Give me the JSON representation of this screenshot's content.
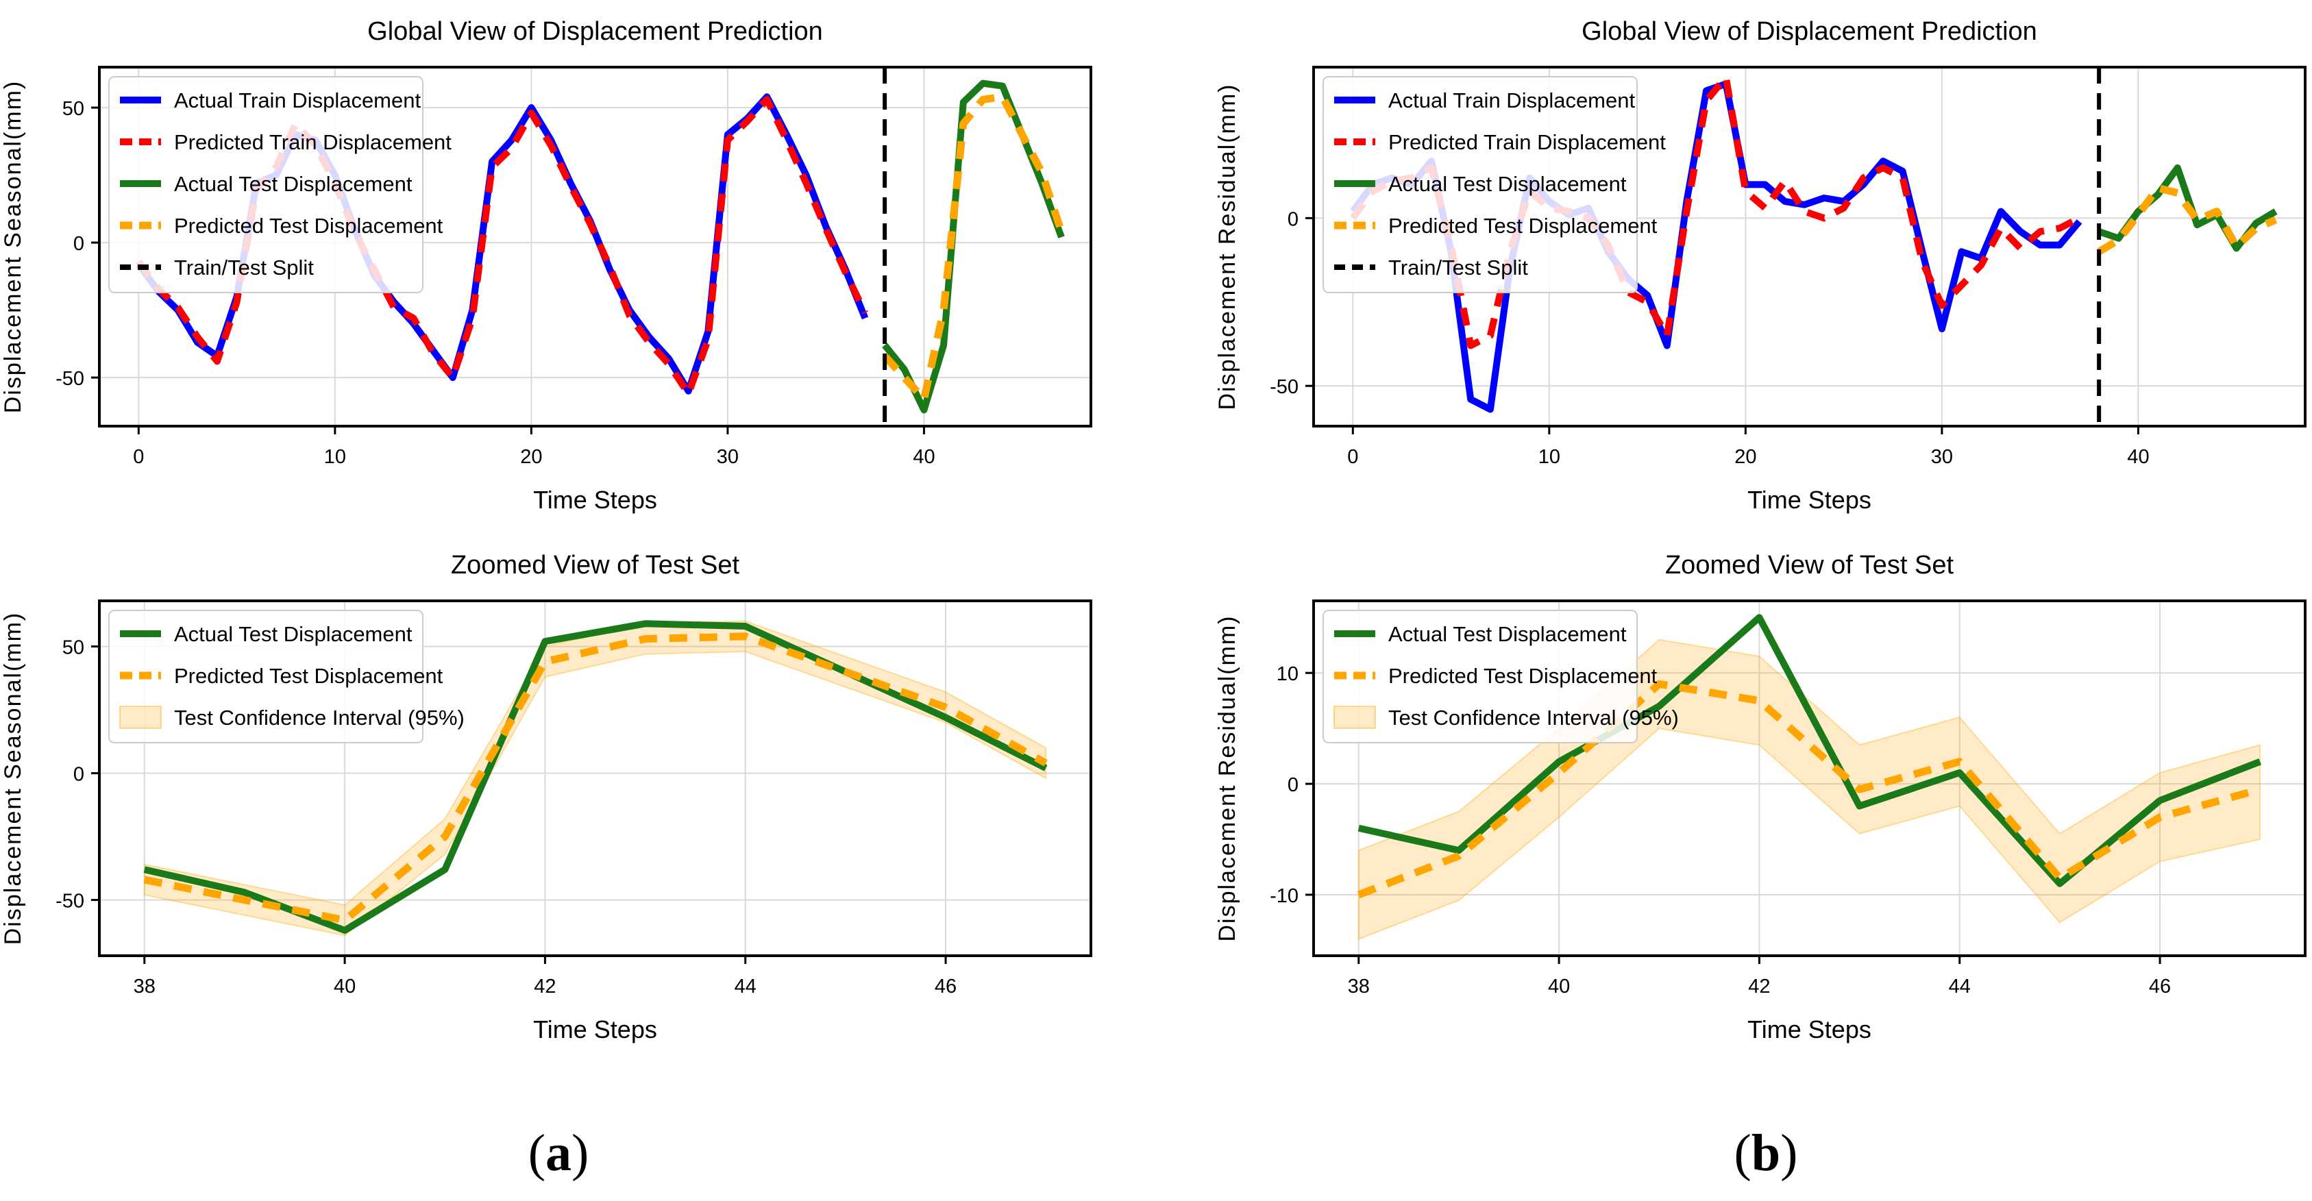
{
  "colors": {
    "train_actual": "#0000ff",
    "train_pred": "#ff0000",
    "test_actual": "#1a7a1a",
    "test_pred": "#ffa500",
    "ci_fill": "#ffa500",
    "split": "#000000",
    "grid": "#d9d9d9",
    "axis": "#000000"
  },
  "panels": {
    "a": {
      "paren_open": "(",
      "letter": "a",
      "paren_close": ")"
    },
    "b": {
      "paren_open": "(",
      "letter": "b",
      "paren_close": ")"
    }
  },
  "chart_data": [
    {
      "id": "a-global",
      "type": "line",
      "title": "Global View of Displacement Prediction",
      "xlabel": "Time Steps",
      "ylabel": "Displacement Seasonal(mm)",
      "xlim": [
        -2,
        48.5
      ],
      "ylim": [
        -68,
        65
      ],
      "xticks": [
        0,
        10,
        20,
        30,
        40
      ],
      "yticks": [
        -50,
        0,
        50
      ],
      "split_x": 38,
      "legend": [
        "Actual Train Displacement",
        "Predicted Train Displacement",
        "Actual Test Displacement",
        "Predicted Test Displacement",
        "Train/Test Split"
      ],
      "series": [
        {
          "name": "Actual Train Displacement",
          "style": "train_actual",
          "x": [
            0,
            1,
            2,
            3,
            4,
            5,
            6,
            7,
            8,
            9,
            10,
            11,
            12,
            13,
            14,
            15,
            16,
            17,
            18,
            19,
            20,
            21,
            22,
            23,
            24,
            25,
            26,
            27,
            28,
            29,
            30,
            31,
            32,
            33,
            34,
            35,
            36,
            37
          ],
          "values": [
            -8,
            -18,
            -25,
            -37,
            -42,
            -20,
            22,
            25,
            40,
            38,
            25,
            5,
            -12,
            -22,
            -30,
            -40,
            -50,
            -25,
            30,
            38,
            50,
            38,
            22,
            8,
            -10,
            -25,
            -35,
            -43,
            -55,
            -33,
            40,
            46,
            54,
            40,
            25,
            6,
            -10,
            -28
          ]
        },
        {
          "name": "Predicted Train Displacement",
          "style": "train_pred",
          "x": [
            0,
            1,
            2,
            3,
            4,
            5,
            6,
            7,
            8,
            9,
            10,
            11,
            12,
            13,
            14,
            15,
            16,
            17,
            18,
            19,
            20,
            21,
            22,
            23,
            24,
            25,
            26,
            27,
            28,
            29,
            30,
            31,
            32,
            33,
            34,
            35,
            36,
            37
          ],
          "values": [
            -7,
            -17,
            -24,
            -35,
            -44,
            -22,
            20,
            28,
            44,
            36,
            22,
            4,
            -10,
            -24,
            -28,
            -41,
            -50,
            -28,
            28,
            35,
            48,
            36,
            21,
            7,
            -9,
            -27,
            -37,
            -45,
            -56,
            -36,
            38,
            45,
            53,
            38,
            22,
            5,
            -11,
            -26
          ]
        },
        {
          "name": "Actual Test Displacement",
          "style": "test_actual",
          "x": [
            38,
            39,
            40,
            41,
            42,
            43,
            44,
            45,
            46,
            47
          ],
          "values": [
            -38,
            -47,
            -62,
            -38,
            52,
            59,
            58,
            40,
            22,
            2
          ]
        },
        {
          "name": "Predicted Test Displacement",
          "style": "test_pred",
          "x": [
            38,
            39,
            40,
            41,
            42,
            43,
            44,
            45,
            46,
            47
          ],
          "values": [
            -42,
            -50,
            -58,
            -25,
            44,
            53,
            54,
            40,
            26,
            4
          ]
        }
      ]
    },
    {
      "id": "b-global",
      "type": "line",
      "title": "Global View of Displacement Prediction",
      "xlabel": "Time Steps",
      "ylabel": "Displacement Residual(mm)",
      "xlim": [
        -2,
        48.5
      ],
      "ylim": [
        -62,
        45
      ],
      "xticks": [
        0,
        10,
        20,
        30,
        40
      ],
      "yticks": [
        -50,
        0
      ],
      "split_x": 38,
      "legend": [
        "Actual Train Displacement",
        "Predicted Train Displacement",
        "Actual Test Displacement",
        "Predicted Test Displacement",
        "Train/Test Split"
      ],
      "series": [
        {
          "name": "Actual Train Displacement",
          "style": "train_actual",
          "x": [
            0,
            1,
            2,
            3,
            4,
            5,
            6,
            7,
            8,
            9,
            10,
            11,
            12,
            13,
            14,
            15,
            16,
            17,
            18,
            19,
            20,
            21,
            22,
            23,
            24,
            25,
            26,
            27,
            28,
            29,
            30,
            31,
            32,
            33,
            34,
            35,
            36,
            37
          ],
          "values": [
            2,
            10,
            12,
            10,
            17,
            -10,
            -54,
            -57,
            -15,
            12,
            5,
            1,
            3,
            -10,
            -18,
            -23,
            -38,
            5,
            38,
            40,
            10,
            10,
            5,
            4,
            6,
            5,
            10,
            17,
            14,
            -10,
            -33,
            -10,
            -12,
            2,
            -4,
            -8,
            -8,
            -1
          ]
        },
        {
          "name": "Predicted Train Displacement",
          "style": "train_pred",
          "x": [
            0,
            1,
            2,
            3,
            4,
            5,
            6,
            7,
            8,
            9,
            10,
            11,
            12,
            13,
            14,
            15,
            16,
            17,
            18,
            19,
            20,
            21,
            22,
            23,
            24,
            25,
            26,
            27,
            28,
            29,
            30,
            31,
            32,
            33,
            34,
            35,
            36,
            37
          ],
          "values": [
            0,
            8,
            11,
            12,
            15,
            -8,
            -38,
            -35,
            -10,
            8,
            3,
            2,
            0,
            -8,
            -22,
            -25,
            -35,
            2,
            35,
            42,
            8,
            3,
            11,
            2,
            0,
            3,
            12,
            15,
            12,
            -13,
            -26,
            -20,
            -14,
            -3,
            -9,
            -4,
            -3,
            0
          ]
        },
        {
          "name": "Actual Test Displacement",
          "style": "test_actual",
          "x": [
            38,
            39,
            40,
            41,
            42,
            43,
            44,
            45,
            46,
            47
          ],
          "values": [
            -4,
            -6,
            2,
            7,
            15,
            -2,
            1,
            -9,
            -1.5,
            2
          ]
        },
        {
          "name": "Predicted Test Displacement",
          "style": "test_pred",
          "x": [
            38,
            39,
            40,
            41,
            42,
            43,
            44,
            45,
            46,
            47
          ],
          "values": [
            -10,
            -6.5,
            1,
            9,
            7.5,
            -0.5,
            2,
            -8.5,
            -3,
            -0.5
          ]
        }
      ]
    },
    {
      "id": "a-zoom",
      "type": "line",
      "title": "Zoomed View of Test Set",
      "xlabel": "Time Steps",
      "ylabel": "Displacement Seasonal(mm)",
      "xlim": [
        37.55,
        47.45
      ],
      "ylim": [
        -72,
        68
      ],
      "xticks": [
        38,
        40,
        42,
        44,
        46
      ],
      "yticks": [
        -50,
        0,
        50
      ],
      "legend": [
        "Actual Test Displacement",
        "Predicted Test Displacement",
        "Test Confidence Interval (95%)"
      ],
      "series": [
        {
          "name": "Actual Test Displacement",
          "style": "test_actual",
          "x": [
            38,
            39,
            40,
            41,
            42,
            43,
            44,
            45,
            46,
            47
          ],
          "values": [
            -38,
            -47,
            -62,
            -38,
            52,
            59,
            58,
            40,
            22,
            2
          ]
        },
        {
          "name": "Predicted Test Displacement",
          "style": "test_pred",
          "x": [
            38,
            39,
            40,
            41,
            42,
            43,
            44,
            45,
            46,
            47
          ],
          "values": [
            -42,
            -50,
            -58,
            -25,
            44,
            53,
            54,
            40,
            26,
            4
          ]
        }
      ],
      "ci": {
        "name": "Test Confidence Interval (95%)",
        "x": [
          38,
          39,
          40,
          41,
          42,
          43,
          44,
          45,
          46,
          47
        ],
        "lower": [
          -48,
          -56,
          -64,
          -32,
          38,
          47,
          48,
          34,
          20,
          -2
        ],
        "upper": [
          -36,
          -44,
          -52,
          -18,
          50,
          59,
          60,
          46,
          32,
          10
        ]
      }
    },
    {
      "id": "b-zoom",
      "type": "line",
      "title": "Zoomed View of Test Set",
      "xlabel": "Time Steps",
      "ylabel": "Displacement Residual(mm)",
      "xlim": [
        37.55,
        47.45
      ],
      "ylim": [
        -15.5,
        16.5
      ],
      "xticks": [
        38,
        40,
        42,
        44,
        46
      ],
      "yticks": [
        -10,
        0,
        10
      ],
      "legend": [
        "Actual Test Displacement",
        "Predicted Test Displacement",
        "Test Confidence Interval (95%)"
      ],
      "series": [
        {
          "name": "Actual Test Displacement",
          "style": "test_actual",
          "x": [
            38,
            39,
            40,
            41,
            42,
            43,
            44,
            45,
            46,
            47
          ],
          "values": [
            -4,
            -6,
            2,
            7,
            15,
            -2,
            1,
            -9,
            -1.5,
            2
          ]
        },
        {
          "name": "Predicted Test Displacement",
          "style": "test_pred",
          "x": [
            38,
            39,
            40,
            41,
            42,
            43,
            44,
            45,
            46,
            47
          ],
          "values": [
            -10,
            -6.5,
            1,
            9,
            7.5,
            -0.5,
            2,
            -8.5,
            -3,
            -0.5
          ]
        }
      ],
      "ci": {
        "name": "Test Confidence Interval (95%)",
        "x": [
          38,
          39,
          40,
          41,
          42,
          43,
          44,
          45,
          46,
          47
        ],
        "lower": [
          -14,
          -10.5,
          -3,
          5,
          3.5,
          -4.5,
          -2,
          -12.5,
          -7,
          -5
        ],
        "upper": [
          -6,
          -2.5,
          5,
          13,
          11.5,
          3.5,
          6,
          -4.5,
          1,
          3.5
        ]
      }
    }
  ]
}
